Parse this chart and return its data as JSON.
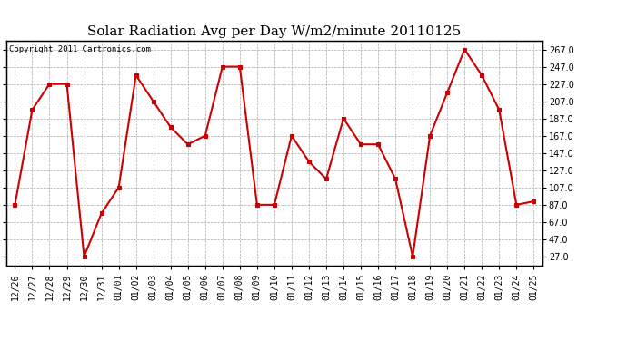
{
  "title": "Solar Radiation Avg per Day W/m2/minute 20110125",
  "copyright": "Copyright 2011 Cartronics.com",
  "dates": [
    "12/26",
    "12/27",
    "12/28",
    "12/29",
    "12/30",
    "12/31",
    "01/01",
    "01/02",
    "01/03",
    "01/04",
    "01/05",
    "01/06",
    "01/07",
    "01/08",
    "01/09",
    "01/10",
    "01/11",
    "01/12",
    "01/13",
    "01/14",
    "01/15",
    "01/16",
    "01/17",
    "01/18",
    "01/19",
    "01/20",
    "01/21",
    "01/22",
    "01/23",
    "01/24",
    "01/25"
  ],
  "values": [
    87,
    197,
    227,
    227,
    27,
    77,
    107,
    237,
    207,
    177,
    157,
    167,
    247,
    247,
    87,
    87,
    167,
    137,
    117,
    187,
    157,
    157,
    117,
    27,
    167,
    217,
    267,
    237,
    197,
    87,
    91
  ],
  "line_color": "#cc0000",
  "marker": "s",
  "marker_color": "#cc0000",
  "marker_size": 3,
  "background_color": "#ffffff",
  "plot_bg_color": "#ffffff",
  "grid_color": "#aaaaaa",
  "ylim": [
    17,
    277
  ],
  "yticks": [
    27.0,
    47.0,
    67.0,
    87.0,
    107.0,
    127.0,
    147.0,
    167.0,
    187.0,
    207.0,
    227.0,
    247.0,
    267.0
  ],
  "title_fontsize": 11,
  "copyright_fontsize": 6.5,
  "tick_fontsize": 7
}
